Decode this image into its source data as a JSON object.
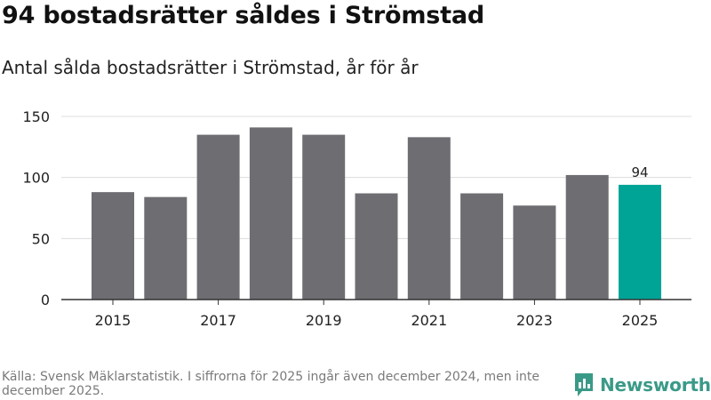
{
  "header": {
    "title": "94 bostadsrätter såldes i Strömstad",
    "subtitle": "Antal sålda bostadsrätter i Strömstad, år för år"
  },
  "chart_data": {
    "type": "bar",
    "title": "94 bostadsrätter såldes i Strömstad",
    "subtitle": "Antal sålda bostadsrätter i Strömstad, år för år",
    "categories": [
      "2015",
      "2016",
      "2017",
      "2018",
      "2019",
      "2020",
      "2021",
      "2022",
      "2023",
      "2024",
      "2025"
    ],
    "values": [
      88,
      84,
      135,
      141,
      135,
      87,
      133,
      87,
      77,
      102,
      94
    ],
    "x_tick_labels": [
      "2015",
      "2017",
      "2019",
      "2021",
      "2023",
      "2025"
    ],
    "y_ticks": [
      0,
      50,
      100,
      150
    ],
    "ylim": [
      0,
      150
    ],
    "xlabel": "",
    "ylabel": "",
    "grid": true,
    "highlight": {
      "category": "2025",
      "label": "94"
    },
    "colors": {
      "bar": "#6d6d72",
      "highlight": "#00a497",
      "grid": "#dcdcdc",
      "axis": "#333333"
    }
  },
  "footer": {
    "source": "Källa: Svensk Mäklarstatistik. I siffrorna för 2025 ingår även december 2024, men inte december 2025."
  },
  "logo": {
    "text": "Newsworthy",
    "icon": "newsworthy-logo-icon",
    "color": "#3a9a88"
  }
}
